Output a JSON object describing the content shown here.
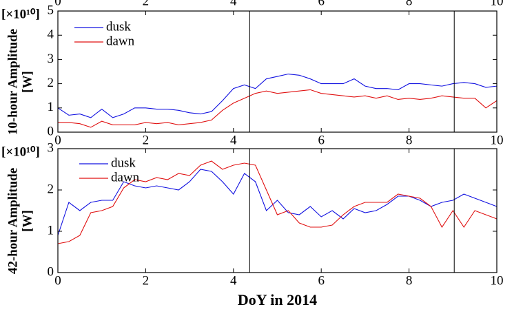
{
  "chart_data": [
    {
      "type": "line",
      "ylabel": [
        "10-hour Amplitude",
        "[W]"
      ],
      "scale_label": "[×10¹⁰]",
      "x": [
        0,
        0.25,
        0.5,
        0.75,
        1,
        1.25,
        1.5,
        1.75,
        2,
        2.25,
        2.5,
        2.75,
        3,
        3.25,
        3.5,
        3.75,
        4,
        4.25,
        4.5,
        4.75,
        5,
        5.25,
        5.5,
        5.75,
        6,
        6.25,
        6.5,
        6.75,
        7,
        7.25,
        7.5,
        7.75,
        8,
        8.25,
        8.5,
        8.75,
        9,
        9.25,
        9.5,
        9.75,
        10
      ],
      "series": [
        {
          "name": "dusk",
          "color": "#1010e0",
          "values": [
            1.0,
            0.7,
            0.75,
            0.6,
            0.95,
            0.6,
            0.75,
            1.0,
            1.0,
            0.95,
            0.95,
            0.9,
            0.8,
            0.75,
            0.85,
            1.3,
            1.8,
            1.95,
            1.8,
            2.2,
            2.3,
            2.4,
            2.35,
            2.2,
            2.0,
            2.0,
            2.0,
            2.2,
            1.9,
            1.8,
            1.8,
            1.75,
            2.0,
            2.0,
            1.95,
            1.9,
            2.0,
            2.05,
            2.0,
            1.85,
            1.9
          ]
        },
        {
          "name": "dawn",
          "color": "#e01010",
          "values": [
            0.4,
            0.4,
            0.35,
            0.2,
            0.45,
            0.3,
            0.3,
            0.3,
            0.4,
            0.35,
            0.4,
            0.3,
            0.35,
            0.4,
            0.5,
            0.9,
            1.2,
            1.4,
            1.6,
            1.7,
            1.6,
            1.65,
            1.7,
            1.75,
            1.6,
            1.55,
            1.5,
            1.45,
            1.5,
            1.4,
            1.5,
            1.35,
            1.4,
            1.35,
            1.4,
            1.5,
            1.45,
            1.4,
            1.4,
            1.0,
            1.3
          ]
        }
      ],
      "vlines": [
        4.37,
        9.03
      ],
      "xlim": [
        0,
        10
      ],
      "xticks": [
        0,
        2,
        4,
        6,
        8,
        10
      ],
      "ylim": [
        0,
        5
      ],
      "yticks": [
        0,
        1,
        2,
        3,
        4,
        5
      ]
    },
    {
      "type": "line",
      "ylabel": [
        "42-hour Amplitude",
        "[W]"
      ],
      "scale_label": "[×10¹⁰]",
      "xlabel": "DoY in 2014",
      "x": [
        0,
        0.25,
        0.5,
        0.75,
        1,
        1.25,
        1.5,
        1.75,
        2,
        2.25,
        2.5,
        2.75,
        3,
        3.25,
        3.5,
        3.75,
        4,
        4.25,
        4.5,
        4.75,
        5,
        5.25,
        5.5,
        5.75,
        6,
        6.25,
        6.5,
        6.75,
        7,
        7.25,
        7.5,
        7.75,
        8,
        8.25,
        8.5,
        8.75,
        9,
        9.25,
        9.5,
        9.75,
        10
      ],
      "series": [
        {
          "name": "dusk",
          "color": "#1010e0",
          "values": [
            0.9,
            1.7,
            1.5,
            1.7,
            1.75,
            1.75,
            2.2,
            2.1,
            2.05,
            2.1,
            2.05,
            2.0,
            2.2,
            2.5,
            2.45,
            2.2,
            1.9,
            2.4,
            2.2,
            1.5,
            1.75,
            1.45,
            1.4,
            1.6,
            1.35,
            1.5,
            1.3,
            1.55,
            1.45,
            1.5,
            1.65,
            1.85,
            1.85,
            1.75,
            1.6,
            1.7,
            1.75,
            1.9,
            1.8,
            1.7,
            1.6
          ]
        },
        {
          "name": "dawn",
          "color": "#e01010",
          "values": [
            0.7,
            0.75,
            0.9,
            1.45,
            1.5,
            1.6,
            2.05,
            2.25,
            2.2,
            2.3,
            2.25,
            2.4,
            2.35,
            2.6,
            2.7,
            2.5,
            2.6,
            2.65,
            2.6,
            2.0,
            1.4,
            1.5,
            1.2,
            1.1,
            1.1,
            1.15,
            1.4,
            1.6,
            1.7,
            1.7,
            1.7,
            1.9,
            1.85,
            1.8,
            1.6,
            1.1,
            1.5,
            1.1,
            1.5,
            1.4,
            1.3
          ]
        }
      ],
      "vlines": [
        4.37,
        9.03
      ],
      "xlim": [
        0,
        10
      ],
      "xticks": [
        0,
        2,
        4,
        6,
        8,
        10
      ],
      "ylim": [
        0,
        3
      ],
      "yticks": [
        0,
        1,
        2,
        3
      ]
    }
  ]
}
